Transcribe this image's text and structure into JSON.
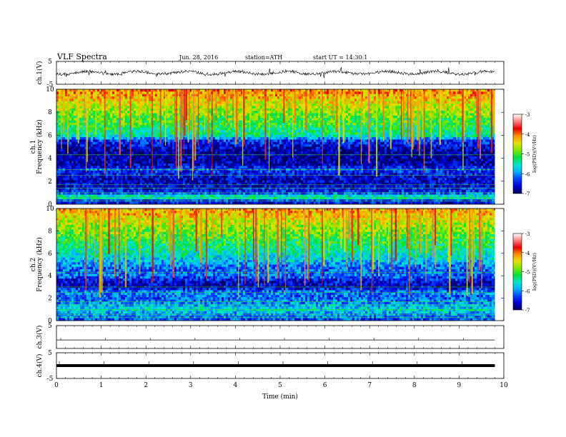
{
  "header": {
    "title": "VLF  Spectra",
    "date": "Jun. 28, 2016",
    "station": "station=ATH",
    "start": "start  UT =   14:30:1"
  },
  "chart_data": [
    {
      "type": "line",
      "panel": "ch1-waveform",
      "ylabel": "ch.1(V)",
      "yticks": [
        "5",
        "-5"
      ],
      "ylim": [
        -5,
        5
      ],
      "xlim": [
        0,
        10
      ],
      "signal_end_min": 9.8,
      "baseline": 0.0
    },
    {
      "type": "heatmap",
      "panel": "ch1-spectrogram",
      "ylabel": [
        "ch.1",
        "Frequency (kHz)"
      ],
      "yticks": [
        "0",
        "2",
        "4",
        "6",
        "8",
        "10"
      ],
      "ylim": [
        0,
        10
      ],
      "xlim": [
        0,
        10
      ],
      "colorbar": {
        "label": "log(PSD)(V²/Hz)",
        "ticks": [
          "-3",
          "-4",
          "-5",
          "-6",
          "-7"
        ],
        "range": [
          -7,
          -3
        ]
      },
      "profile_log_psd": [
        [
          0.0,
          -6.6
        ],
        [
          0.3,
          -6.4
        ],
        [
          0.6,
          -5.2
        ],
        [
          1.0,
          -6.4
        ],
        [
          1.5,
          -6.6
        ],
        [
          2.0,
          -6.7
        ],
        [
          2.5,
          -6.6
        ],
        [
          3.0,
          -6.3
        ],
        [
          3.5,
          -6.8
        ],
        [
          4.0,
          -6.8
        ],
        [
          4.5,
          -6.8
        ],
        [
          5.0,
          -6.6
        ],
        [
          5.5,
          -6.4
        ],
        [
          6.0,
          -5.4
        ],
        [
          6.5,
          -5.3
        ],
        [
          7.0,
          -5.1
        ],
        [
          7.5,
          -5.0
        ],
        [
          8.0,
          -4.8
        ],
        [
          8.5,
          -4.6
        ],
        [
          9.0,
          -4.4
        ],
        [
          9.5,
          -4.2
        ],
        [
          10.0,
          -4.1
        ]
      ]
    },
    {
      "type": "heatmap",
      "panel": "ch2-spectrogram",
      "ylabel": [
        "ch.2",
        "Frequency (kHz)"
      ],
      "yticks": [
        "0",
        "2",
        "4",
        "6",
        "8",
        "10"
      ],
      "ylim": [
        0,
        10
      ],
      "xlim": [
        0,
        10
      ],
      "colorbar": {
        "label": "log(PSD)(V²/Hz)",
        "ticks": [
          "-3",
          "-4",
          "-5",
          "-6",
          "-7"
        ],
        "range": [
          -7,
          -3
        ]
      },
      "profile_log_psd": [
        [
          0.0,
          -6.3
        ],
        [
          0.5,
          -6.0
        ],
        [
          1.0,
          -5.6
        ],
        [
          1.5,
          -6.0
        ],
        [
          2.0,
          -6.2
        ],
        [
          2.5,
          -6.0
        ],
        [
          3.0,
          -6.7
        ],
        [
          3.5,
          -6.6
        ],
        [
          4.0,
          -6.1
        ],
        [
          4.5,
          -6.2
        ],
        [
          5.0,
          -6.0
        ],
        [
          5.5,
          -5.7
        ],
        [
          6.0,
          -5.5
        ],
        [
          6.5,
          -5.3
        ],
        [
          7.0,
          -5.2
        ],
        [
          7.5,
          -5.0
        ],
        [
          8.0,
          -4.9
        ],
        [
          8.5,
          -4.7
        ],
        [
          9.0,
          -4.5
        ],
        [
          9.5,
          -4.3
        ],
        [
          10.0,
          -4.2
        ]
      ]
    },
    {
      "type": "line",
      "panel": "ch3-waveform",
      "ylabel": "ch.3(V)",
      "yticks": [
        "5"
      ],
      "ylim": [
        -5,
        5
      ],
      "xlim": [
        0,
        10
      ],
      "signal_end_min": 9.8,
      "baseline": -1.3
    },
    {
      "type": "line",
      "panel": "ch4-waveform",
      "ylabel": "ch.4(V)",
      "yticks": [
        "5",
        "-5"
      ],
      "ylim": [
        -5,
        5
      ],
      "xlim": [
        0,
        10
      ],
      "signal_end_min": 9.8,
      "baseline": 0.0
    }
  ],
  "xaxis": {
    "label": "Time  (min)",
    "ticks": [
      "0",
      "1",
      "2",
      "3",
      "4",
      "5",
      "6",
      "7",
      "8",
      "9",
      "10"
    ],
    "range": [
      0,
      10
    ]
  },
  "colors": {
    "colormap": [
      "#000060",
      "#0000d0",
      "#0040ff",
      "#00b0ff",
      "#00e8d0",
      "#00e040",
      "#80e800",
      "#e8e000",
      "#ff9000",
      "#e80000",
      "#ff8080",
      "#ffffff"
    ],
    "trace": "#000000",
    "axis": "#000000"
  }
}
